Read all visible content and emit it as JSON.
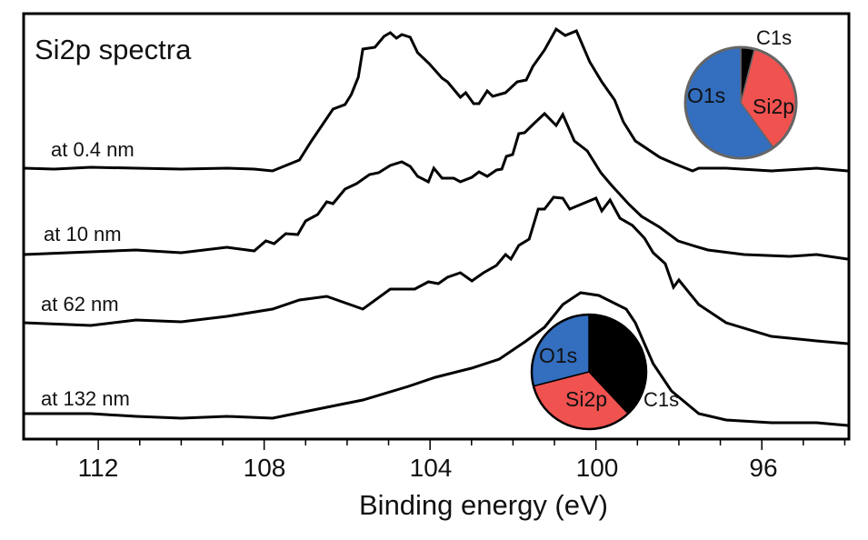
{
  "chart_data": {
    "type": "line",
    "title": "Si2p spectra",
    "xlabel": "Binding energy (eV)",
    "ylabel": "",
    "xlim": [
      113.8,
      93.9
    ],
    "ylim": [
      0,
      468
    ],
    "x_reversed": true,
    "grid": false,
    "xticks": [
      112,
      108,
      104,
      100,
      96
    ],
    "xtick_labels": [
      "112",
      "108",
      "104",
      "100",
      "96"
    ],
    "minor_tick_step": 1,
    "series": [
      {
        "name": "at 0.4 nm",
        "points": [
          [
            113.8,
            298
          ],
          [
            113.06,
            297
          ],
          [
            112.18,
            299
          ],
          [
            111.09,
            298
          ],
          [
            110.0,
            297
          ],
          [
            108.9,
            298
          ],
          [
            108.24,
            297
          ],
          [
            107.8,
            295
          ],
          [
            107.15,
            307
          ],
          [
            106.86,
            328
          ],
          [
            106.34,
            363
          ],
          [
            106.05,
            368
          ],
          [
            105.9,
            379
          ],
          [
            105.73,
            398
          ],
          [
            105.62,
            429
          ],
          [
            105.33,
            431
          ],
          [
            105.11,
            443
          ],
          [
            104.96,
            447
          ],
          [
            104.81,
            441
          ],
          [
            104.68,
            445
          ],
          [
            104.48,
            442
          ],
          [
            104.3,
            425
          ],
          [
            104.02,
            413
          ],
          [
            103.71,
            397
          ],
          [
            103.58,
            393
          ],
          [
            103.27,
            376
          ],
          [
            103.14,
            381
          ],
          [
            102.95,
            369
          ],
          [
            102.82,
            369
          ],
          [
            102.62,
            383
          ],
          [
            102.49,
            377
          ],
          [
            102.18,
            381
          ],
          [
            101.9,
            393
          ],
          [
            101.68,
            395
          ],
          [
            101.52,
            410
          ],
          [
            101.24,
            428
          ],
          [
            100.96,
            451
          ],
          [
            100.74,
            444
          ],
          [
            100.47,
            449
          ],
          [
            100.15,
            415
          ],
          [
            99.86,
            393
          ],
          [
            99.55,
            373
          ],
          [
            99.34,
            349
          ],
          [
            99.05,
            328
          ],
          [
            98.46,
            310
          ],
          [
            98.11,
            303
          ],
          [
            97.67,
            295
          ],
          [
            97.52,
            298
          ],
          [
            96.86,
            298
          ],
          [
            95.77,
            295
          ],
          [
            94.68,
            298
          ],
          [
            93.93,
            295
          ]
        ]
      },
      {
        "name": "at 10 nm",
        "points": [
          [
            113.8,
            203
          ],
          [
            112.18,
            206
          ],
          [
            111.09,
            208
          ],
          [
            110.0,
            205
          ],
          [
            108.9,
            211
          ],
          [
            108.24,
            207
          ],
          [
            107.96,
            218
          ],
          [
            107.76,
            215
          ],
          [
            107.48,
            226
          ],
          [
            107.19,
            225
          ],
          [
            107.0,
            240
          ],
          [
            106.71,
            247
          ],
          [
            106.49,
            261
          ],
          [
            106.34,
            259
          ],
          [
            106.05,
            275
          ],
          [
            105.77,
            281
          ],
          [
            105.46,
            291
          ],
          [
            105.24,
            293
          ],
          [
            104.96,
            301
          ],
          [
            104.68,
            305
          ],
          [
            104.48,
            300
          ],
          [
            104.3,
            289
          ],
          [
            104.04,
            283
          ],
          [
            103.91,
            298
          ],
          [
            103.71,
            287
          ],
          [
            103.43,
            287
          ],
          [
            103.27,
            283
          ],
          [
            102.99,
            288
          ],
          [
            102.82,
            294
          ],
          [
            102.62,
            289
          ],
          [
            102.4,
            296
          ],
          [
            102.27,
            297
          ],
          [
            102.16,
            311
          ],
          [
            102.01,
            313
          ],
          [
            101.86,
            336
          ],
          [
            101.72,
            337
          ],
          [
            101.52,
            346
          ],
          [
            101.24,
            358
          ],
          [
            100.96,
            345
          ],
          [
            100.8,
            357
          ],
          [
            100.52,
            328
          ],
          [
            100.21,
            317
          ],
          [
            99.88,
            293
          ],
          [
            99.64,
            280
          ],
          [
            99.2,
            258
          ],
          [
            98.9,
            245
          ],
          [
            98.46,
            233
          ],
          [
            98.02,
            218
          ],
          [
            97.67,
            213
          ],
          [
            97.3,
            208
          ],
          [
            96.43,
            203
          ],
          [
            95.33,
            201
          ],
          [
            94.68,
            203
          ],
          [
            93.93,
            198
          ]
        ]
      },
      {
        "name": "at 62 nm",
        "points": [
          [
            113.8,
            128
          ],
          [
            112.18,
            125
          ],
          [
            111.09,
            131
          ],
          [
            110.0,
            129
          ],
          [
            108.9,
            135
          ],
          [
            107.8,
            143
          ],
          [
            107.15,
            153
          ],
          [
            106.49,
            157
          ],
          [
            105.62,
            143
          ],
          [
            104.96,
            165
          ],
          [
            104.37,
            165
          ],
          [
            104.04,
            173
          ],
          [
            103.8,
            171
          ],
          [
            103.58,
            178
          ],
          [
            103.27,
            183
          ],
          [
            102.99,
            174
          ],
          [
            102.71,
            183
          ],
          [
            102.4,
            191
          ],
          [
            102.18,
            203
          ],
          [
            102.05,
            198
          ],
          [
            101.86,
            213
          ],
          [
            101.61,
            220
          ],
          [
            101.39,
            253
          ],
          [
            101.24,
            253
          ],
          [
            101.02,
            266
          ],
          [
            100.8,
            265
          ],
          [
            100.63,
            253
          ],
          [
            100.37,
            258
          ],
          [
            100.0,
            265
          ],
          [
            99.86,
            251
          ],
          [
            99.66,
            263
          ],
          [
            99.42,
            243
          ],
          [
            99.12,
            235
          ],
          [
            98.83,
            221
          ],
          [
            98.62,
            205
          ],
          [
            98.33,
            193
          ],
          [
            98.13,
            167
          ],
          [
            98.0,
            175
          ],
          [
            97.52,
            148
          ],
          [
            96.86,
            128
          ],
          [
            95.77,
            113
          ],
          [
            94.68,
            108
          ],
          [
            93.93,
            105
          ]
        ]
      },
      {
        "name": "at 132 nm",
        "points": [
          [
            113.8,
            28
          ],
          [
            112.18,
            28
          ],
          [
            111.09,
            25
          ],
          [
            110.0,
            23
          ],
          [
            108.9,
            25
          ],
          [
            107.8,
            23
          ],
          [
            106.71,
            33
          ],
          [
            105.62,
            43
          ],
          [
            104.52,
            58
          ],
          [
            103.87,
            68
          ],
          [
            103.0,
            78
          ],
          [
            102.33,
            88
          ],
          [
            101.68,
            108
          ],
          [
            101.24,
            123
          ],
          [
            100.8,
            148
          ],
          [
            100.37,
            161
          ],
          [
            99.93,
            158
          ],
          [
            99.27,
            143
          ],
          [
            99.05,
            128
          ],
          [
            98.62,
            83
          ],
          [
            98.18,
            53
          ],
          [
            97.52,
            28
          ],
          [
            96.86,
            21
          ],
          [
            95.77,
            18
          ],
          [
            94.68,
            18
          ],
          [
            93.93,
            15
          ]
        ]
      }
    ],
    "pies": [
      {
        "name": "top inset",
        "slices": [
          {
            "label": "C1s",
            "value": 4,
            "color": "#000000"
          },
          {
            "label": "Si2p",
            "value": 36,
            "color": "#f05250"
          },
          {
            "label": "O1s",
            "value": 60,
            "color": "#336ebf"
          }
        ]
      },
      {
        "name": "bottom inset",
        "slices": [
          {
            "label": "C1s",
            "value": 38,
            "color": "#000000"
          },
          {
            "label": "Si2p",
            "value": 33,
            "color": "#f05250"
          },
          {
            "label": "O1s",
            "value": 29,
            "color": "#336ebf"
          }
        ]
      }
    ]
  }
}
